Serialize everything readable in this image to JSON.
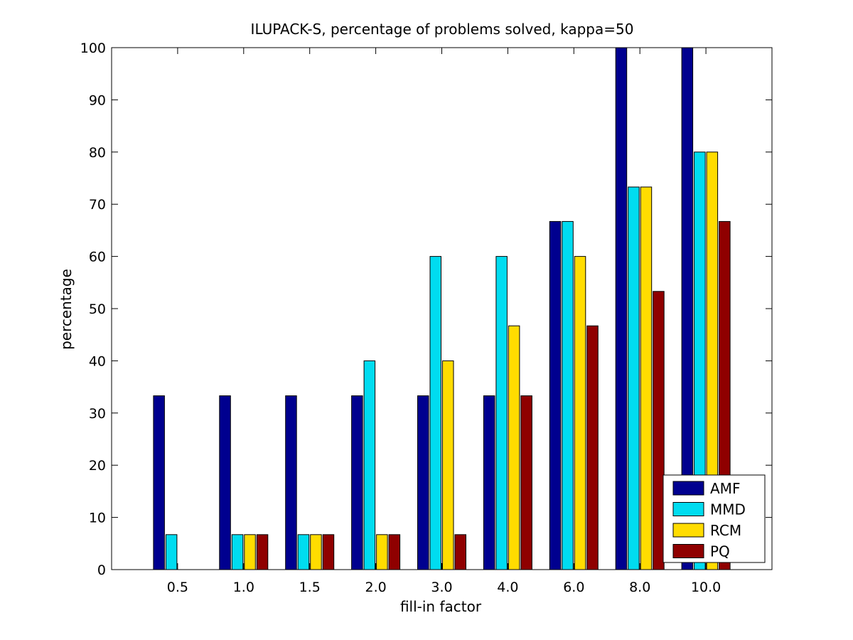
{
  "chart_data": {
    "type": "bar",
    "title": "ILUPACK-S, percentage of problems solved, kappa=50",
    "xlabel": "fill-in factor",
    "ylabel": "percentage",
    "categories": [
      "0.5",
      "1.0",
      "1.5",
      "2.0",
      "3.0",
      "4.0",
      "6.0",
      "8.0",
      "10.0"
    ],
    "ylim": [
      0,
      100
    ],
    "yticks": [
      0,
      10,
      20,
      30,
      40,
      50,
      60,
      70,
      80,
      90,
      100
    ],
    "grid": false,
    "legend_position": "bottom-right",
    "series": [
      {
        "name": "AMF",
        "color": "#00008f",
        "values": [
          33.3,
          33.3,
          33.3,
          33.3,
          33.3,
          33.3,
          66.7,
          100,
          100
        ]
      },
      {
        "name": "MMD",
        "color": "#00dcf0",
        "values": [
          6.7,
          6.7,
          6.7,
          40,
          60,
          60,
          66.7,
          73.3,
          80
        ]
      },
      {
        "name": "RCM",
        "color": "#ffdc00",
        "values": [
          0,
          6.7,
          6.7,
          6.7,
          40,
          46.7,
          60,
          73.3,
          80
        ]
      },
      {
        "name": "PQ",
        "color": "#8f0000",
        "values": [
          0,
          6.7,
          6.7,
          6.7,
          6.7,
          33.3,
          46.7,
          53.3,
          66.7
        ]
      }
    ]
  }
}
